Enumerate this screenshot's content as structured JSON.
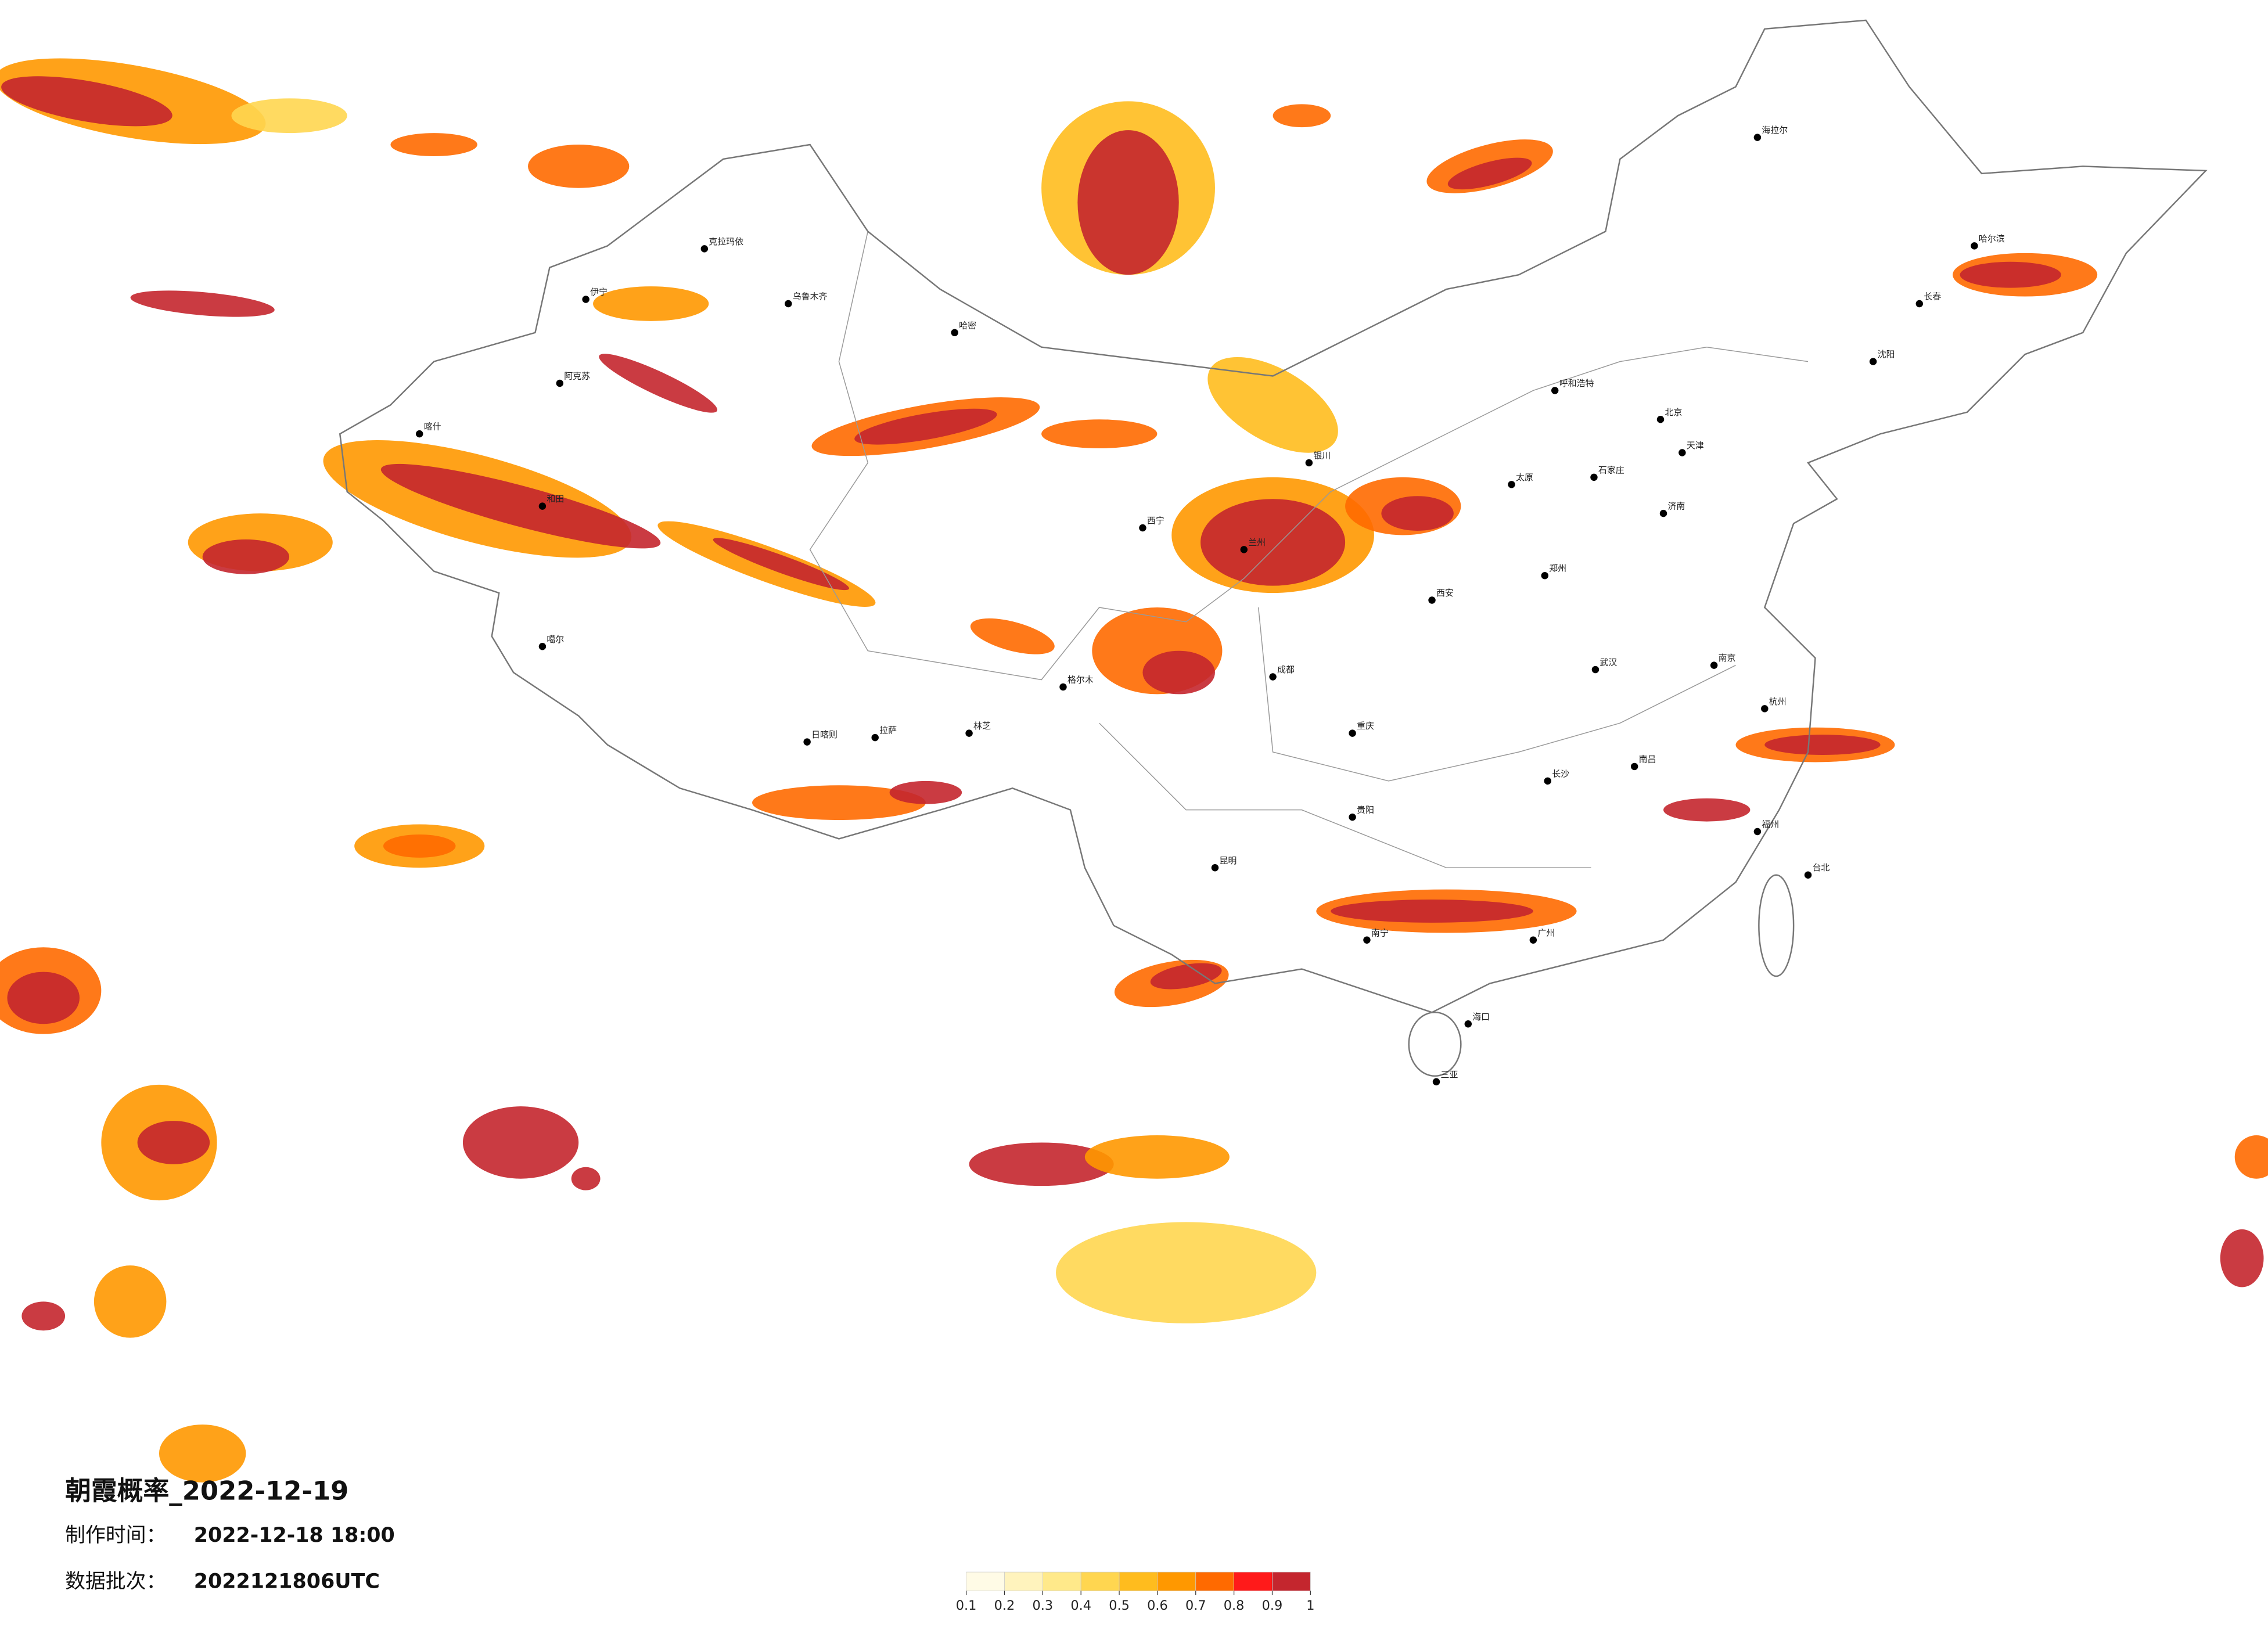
{
  "header": {
    "title": "朝霞概率_2022-12-19",
    "made_label": "制作时间：",
    "made_value": "2022-12-18 18:00",
    "batch_label": "数据批次：",
    "batch_value": "2022121806UTC"
  },
  "legend": {
    "colors": [
      "#fffbe6",
      "#fff3bd",
      "#ffe98a",
      "#ffd650",
      "#ffbc1e",
      "#ff9800",
      "#ff6a00",
      "#ff1a1a",
      "#c4262e"
    ],
    "ticks": [
      0.1,
      0.2,
      0.3,
      0.4,
      0.5,
      0.6,
      0.7,
      0.8,
      0.9,
      1
    ]
  },
  "cities": [
    "克拉玛依",
    "伊宁",
    "乌鲁木齐",
    "哈密",
    "阿克苏",
    "喀什",
    "和田",
    "噶尔",
    "日喀则",
    "拉萨",
    "林芝",
    "格尔木",
    "西宁",
    "兰州",
    "银川",
    "呼和浩特",
    "北京",
    "天津",
    "石家庄",
    "太原",
    "济南",
    "郑州",
    "西安",
    "成都",
    "重庆",
    "贵阳",
    "昆明",
    "南宁",
    "广州",
    "长沙",
    "武汉",
    "南昌",
    "南京",
    "杭州",
    "福州",
    "哈尔滨",
    "长春",
    "沈阳",
    "海拉尔",
    "海口",
    "台北",
    "三亚"
  ]
}
